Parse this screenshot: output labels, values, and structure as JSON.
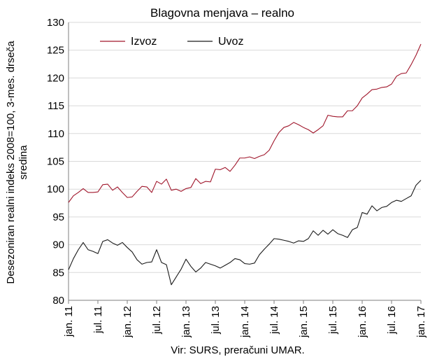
{
  "chart_data": {
    "type": "line",
    "title": "Blagovna menjava – realno",
    "ylabel": "Desezoniran realni indeks 2008=100, 3-mes. drseča sredina",
    "xlabel": "",
    "source": "Vir: SURS, preračuni UMAR.",
    "ylim": [
      80,
      130
    ],
    "y_ticks": [
      80,
      85,
      90,
      95,
      100,
      105,
      110,
      115,
      120,
      125,
      130
    ],
    "grid": true,
    "legend_position": "top-left",
    "x_ticks": [
      "jan. 11",
      "jul. 11",
      "jan. 12",
      "jul. 12",
      "jan. 13",
      "jul. 13",
      "jan. 14",
      "jul. 14",
      "jan. 15",
      "jul. 15",
      "jan. 16",
      "jul. 16",
      "jan. 17"
    ],
    "x_start": "2011-01",
    "series": [
      {
        "name": "Izvoz",
        "color": "#a0162b",
        "values": [
          97.6,
          98.8,
          99.4,
          100.1,
          99.4,
          99.4,
          99.5,
          100.8,
          100.9,
          99.8,
          100.4,
          99.4,
          98.5,
          98.6,
          99.6,
          100.5,
          100.4,
          99.4,
          101.4,
          100.9,
          101.8,
          99.8,
          100.0,
          99.6,
          100.1,
          100.3,
          101.9,
          101.0,
          101.4,
          101.3,
          103.6,
          103.5,
          103.9,
          103.2,
          104.3,
          105.6,
          105.6,
          105.8,
          105.5,
          105.9,
          106.2,
          107.0,
          108.7,
          110.2,
          111.1,
          111.4,
          112.0,
          111.6,
          111.1,
          110.7,
          110.1,
          110.7,
          111.4,
          113.3,
          113.1,
          113.0,
          113.0,
          114.1,
          114.1,
          115.0,
          116.4,
          117.1,
          117.9,
          118.0,
          118.3,
          118.4,
          118.9,
          120.3,
          120.8,
          120.9,
          122.4,
          124.1,
          126.1
        ]
      },
      {
        "name": "Uvoz",
        "color": "#1a1a1a",
        "values": [
          85.5,
          87.5,
          89.1,
          90.4,
          89.1,
          88.8,
          88.4,
          90.6,
          90.9,
          90.3,
          89.9,
          90.4,
          89.5,
          88.7,
          87.3,
          86.5,
          86.8,
          86.9,
          89.1,
          86.8,
          86.4,
          82.8,
          84.2,
          85.6,
          87.4,
          86.1,
          85.1,
          85.8,
          86.8,
          86.5,
          86.2,
          85.8,
          86.3,
          86.8,
          87.5,
          87.3,
          86.6,
          86.5,
          86.7,
          88.2,
          89.2,
          90.1,
          91.1,
          91.0,
          90.8,
          90.6,
          90.3,
          90.7,
          90.6,
          91.1,
          92.5,
          91.7,
          92.6,
          91.9,
          92.7,
          92.0,
          91.7,
          91.3,
          92.7,
          93.1,
          95.8,
          95.5,
          97.0,
          96.1,
          96.7,
          96.9,
          97.6,
          98.0,
          97.8,
          98.3,
          98.8,
          100.7,
          101.6
        ]
      }
    ]
  }
}
